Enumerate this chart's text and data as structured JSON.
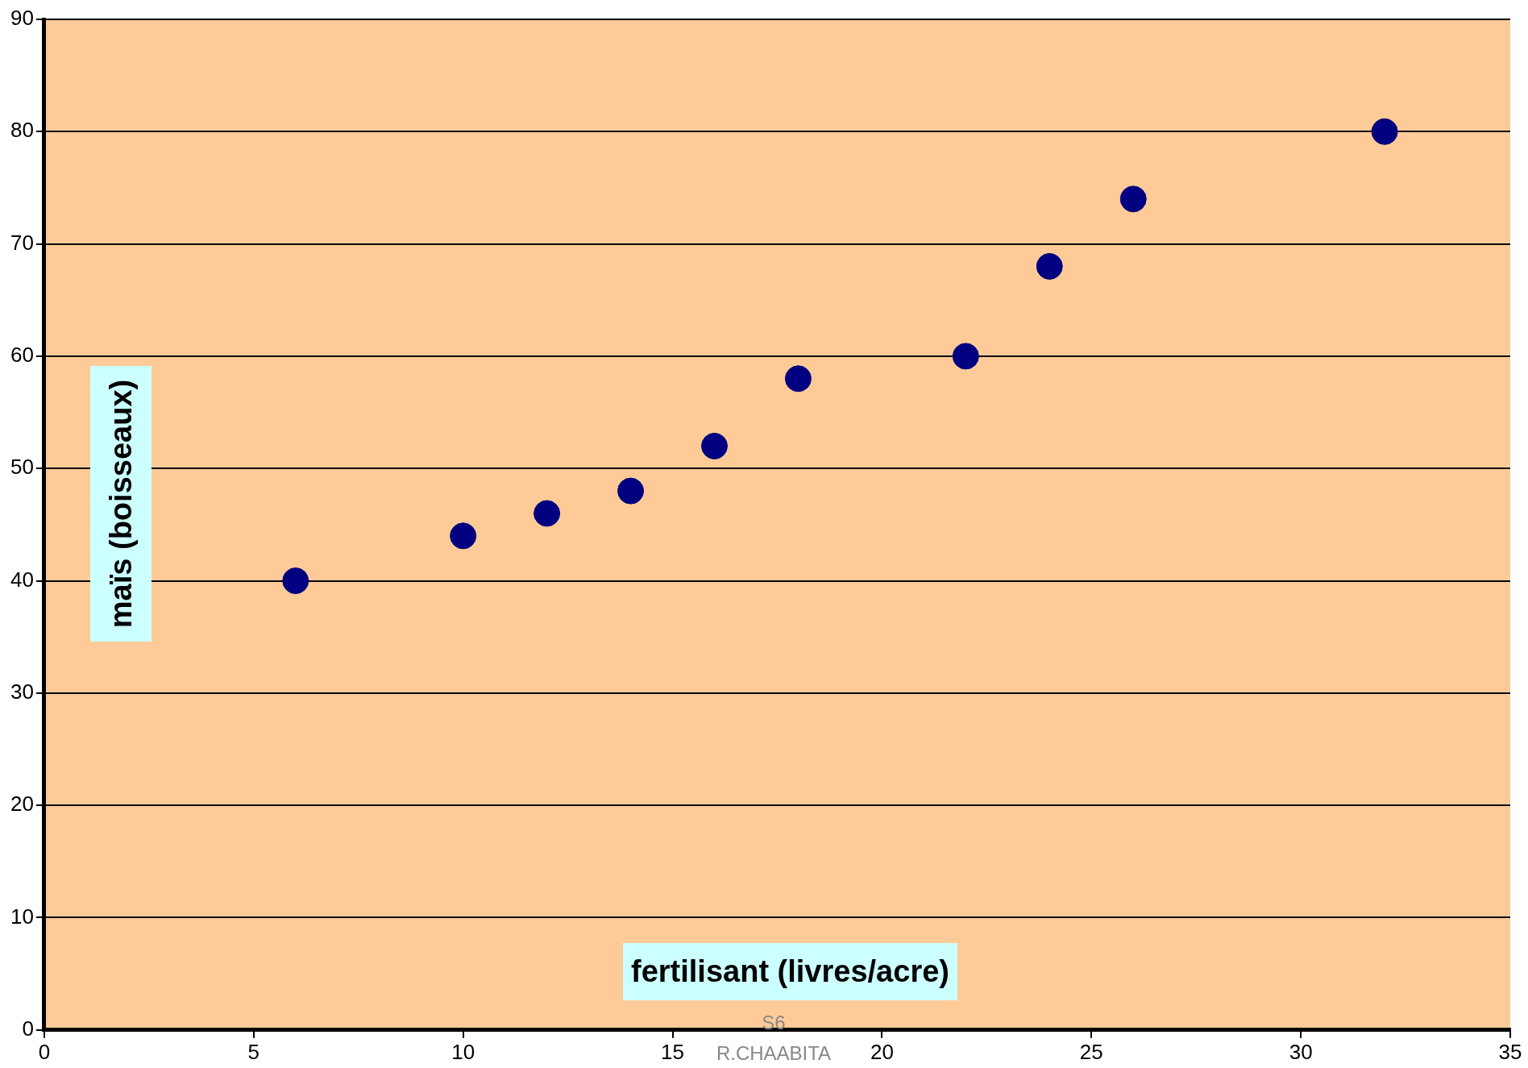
{
  "chart_data": {
    "type": "scatter",
    "xlabel": "fertilisant (livres/acre)",
    "ylabel": "maïs (boisseaux)",
    "x": [
      6,
      10,
      12,
      14,
      16,
      18,
      22,
      24,
      26,
      32
    ],
    "values": [
      40,
      44,
      46,
      48,
      52,
      58,
      60,
      68,
      74,
      80
    ],
    "color": "#000080",
    "marker": "circle",
    "xlim": [
      0,
      35
    ],
    "xticks": [
      0,
      5,
      10,
      15,
      20,
      25,
      30,
      35
    ],
    "ylim": [
      0,
      90
    ],
    "yticks": [
      0,
      10,
      20,
      30,
      40,
      50,
      60,
      70,
      80,
      90
    ],
    "grid": "y",
    "annotations": [
      "S6",
      "R.CHAABITA"
    ]
  }
}
